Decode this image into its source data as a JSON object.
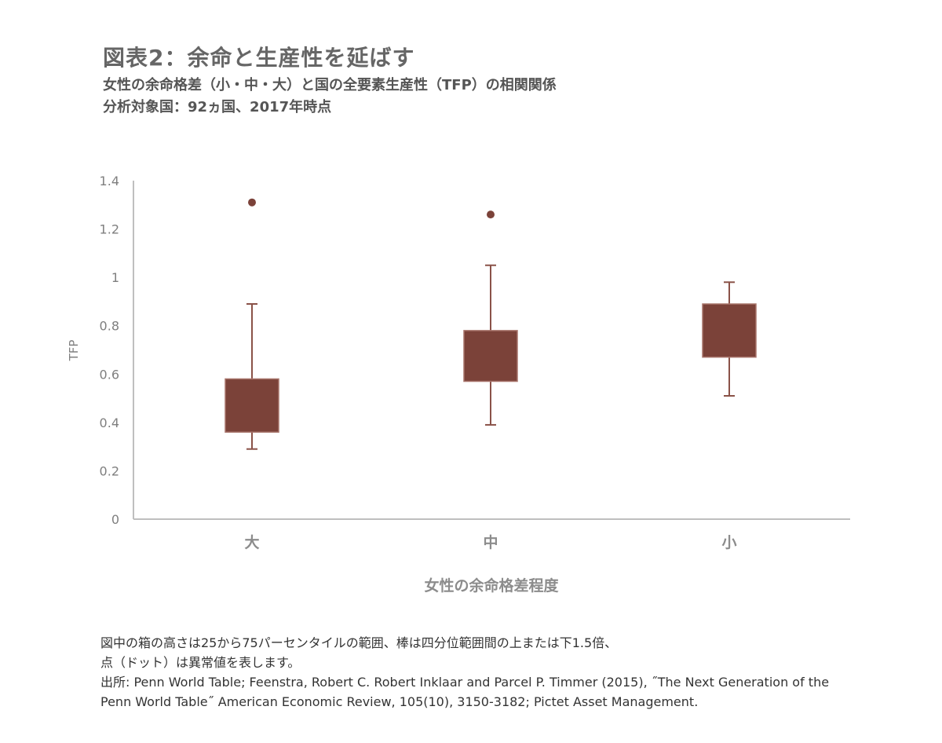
{
  "header": {
    "title": "図表2：余命と生産性を延ばす",
    "subtitle_line1": "女性の余命格差（小・中・大）と国の全要素生産性（TFP）の相関関係",
    "subtitle_line2": "分析対象国：92ヵ国、2017年時点"
  },
  "chart_data": {
    "type": "box",
    "xlabel": "女性の余命格差程度",
    "ylabel": "TFP",
    "ylim": [
      0,
      1.4
    ],
    "yticks": [
      "0",
      "0.2",
      "0.4",
      "0.6",
      "0.8",
      "1",
      "1.2",
      "1.4"
    ],
    "categories": [
      "大",
      "中",
      "小"
    ],
    "boxes": [
      {
        "category": "大",
        "whisker_low": 0.29,
        "q1": 0.36,
        "q3": 0.58,
        "whisker_high": 0.89,
        "outliers": [
          1.31
        ]
      },
      {
        "category": "中",
        "whisker_low": 0.39,
        "q1": 0.57,
        "q3": 0.78,
        "whisker_high": 1.05,
        "outliers": [
          1.26
        ]
      },
      {
        "category": "小",
        "whisker_low": 0.51,
        "q1": 0.67,
        "q3": 0.89,
        "whisker_high": 0.98,
        "outliers": []
      }
    ],
    "colors": {
      "box": "#7b4239",
      "whisker": "#8a5248",
      "axis": "#bfbfbf",
      "tick_text": "#7f7f7f"
    }
  },
  "notes": {
    "line1": "図中の箱の高さは25から75パーセンタイルの範囲、棒は四分位範囲間の上または下1.5倍、",
    "line2": "点（ドット）は異常値を表します。",
    "line3": "出所: Penn World Table; Feenstra, Robert C. Robert Inklaar and Parcel P. Timmer (2015), ˝The Next Generation of the",
    "line4": "Penn World Table˝ American Economic Review, 105(10), 3150-3182; Pictet Asset Management."
  }
}
